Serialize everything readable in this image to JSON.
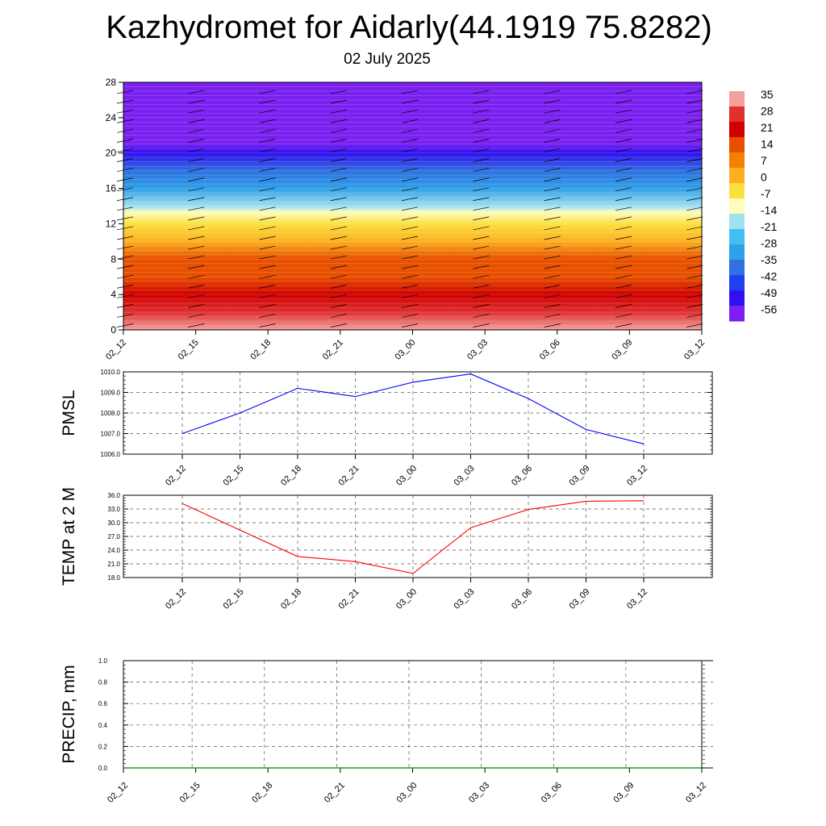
{
  "title": "Kazhydromet for Aidarly(44.1919 75.8282)",
  "subtitle": "02 July 2025",
  "chart_data": [
    {
      "type": "heatmap",
      "description_free": true,
      "y_axis": {
        "ticks": [
          0,
          4,
          8,
          12,
          16,
          20,
          24,
          28
        ],
        "ylim": [
          0,
          28
        ]
      },
      "x_ticks": [
        "02_12",
        "02_15",
        "02_18",
        "02_21",
        "03_00",
        "03_03",
        "03_06",
        "03_09",
        "03_12"
      ],
      "colorbar": {
        "labels": [
          "35",
          "28",
          "21",
          "14",
          "7",
          "0",
          "-7",
          "-14",
          "-21",
          "-28",
          "-35",
          "-42",
          "-49",
          "-56"
        ],
        "colors": [
          "#f4a0a0",
          "#e03030",
          "#d00000",
          "#e85000",
          "#f48000",
          "#fbb020",
          "#fce040",
          "#fffcc0",
          "#a0e0f0",
          "#40c0f0",
          "#30a0e8",
          "#3070e0",
          "#2040f0",
          "#3010f0",
          "#7a20f0"
        ]
      },
      "profile": [
        {
          "level": 0,
          "temp": 33
        },
        {
          "level": 2,
          "temp": 28
        },
        {
          "level": 4,
          "temp": 22
        },
        {
          "level": 6,
          "temp": 18
        },
        {
          "level": 8,
          "temp": 12
        },
        {
          "level": 10,
          "temp": 5
        },
        {
          "level": 12,
          "temp": -3
        },
        {
          "level": 13.3,
          "temp": -10
        },
        {
          "level": 14,
          "temp": -17
        },
        {
          "level": 16,
          "temp": -28
        },
        {
          "level": 18,
          "temp": -38
        },
        {
          "level": 20,
          "temp": -48
        },
        {
          "level": 21,
          "temp": -54
        },
        {
          "level": 23,
          "temp": -60
        },
        {
          "level": 28,
          "temp": -60
        }
      ],
      "grid": false
    },
    {
      "type": "line",
      "ylabel": "PMSL",
      "x": [
        "02_12",
        "02_15",
        "02_18",
        "02_21",
        "03_00",
        "03_03",
        "03_06",
        "03_09",
        "03_12"
      ],
      "series": [
        {
          "values": [
            1007.0,
            1008.0,
            1009.2,
            1008.8,
            1009.5,
            1009.9,
            1008.7,
            1007.2,
            1006.5
          ]
        }
      ],
      "yticks": [
        "1006.0",
        "1007.0",
        "1008.0",
        "1009.0",
        "1010.0"
      ],
      "ylim": [
        1006.0,
        1010.0
      ],
      "color": "#0000ff",
      "grid": true
    },
    {
      "type": "line",
      "ylabel": "TEMP at 2 M",
      "x": [
        "02_12",
        "02_15",
        "02_18",
        "02_21",
        "03_00",
        "03_03",
        "03_06",
        "03_09",
        "03_12"
      ],
      "series": [
        {
          "values": [
            34.2,
            28.4,
            22.6,
            21.5,
            18.9,
            28.9,
            32.9,
            34.7,
            34.8
          ]
        }
      ],
      "yticks": [
        "18.0",
        "21.0",
        "24.0",
        "27.0",
        "30.0",
        "33.0",
        "36.0"
      ],
      "ylim": [
        18.0,
        36.0
      ],
      "color": "#ff0000",
      "grid": true
    },
    {
      "type": "line",
      "ylabel": "PRECIP, mm",
      "x": [
        "02_12",
        "02_15",
        "02_18",
        "02_21",
        "03_00",
        "03_03",
        "03_06",
        "03_09",
        "03_12"
      ],
      "series": [
        {
          "values": [
            0,
            0,
            0,
            0,
            0,
            0,
            0,
            0,
            0
          ]
        }
      ],
      "yticks": [
        "0.0",
        "0.2",
        "0.4",
        "0.6",
        "0.8",
        "1.0"
      ],
      "ylim": [
        0,
        1.0
      ],
      "color": "#008000",
      "grid": true
    }
  ]
}
